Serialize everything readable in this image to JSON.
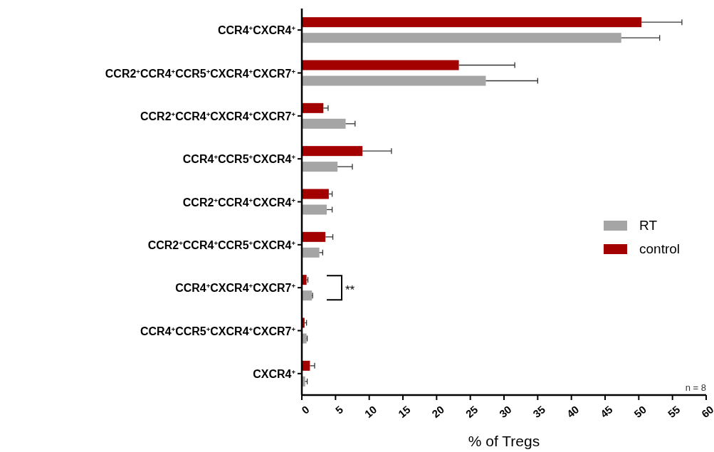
{
  "chart_data": {
    "type": "bar",
    "orientation": "horizontal",
    "xlabel": "% of Tregs",
    "categories": [
      "CCR4$^{+}$CXCR4$^{+}$",
      "CCR2$^{+}$CCR4$^{+}$CCR5$^{+}$CXCR4$^{+}$CXCR7$^{+}$",
      "CCR2$^{+}$CCR4$^{+}$CXCR4$^{+}$CXCR7$^{+}$",
      "CCR4$^{+}$CCR5$^{+}$CXCR4$^{+}$",
      "CCR2$^{+}$CCR4$^{+}$CXCR4$^{+}$",
      "CCR2$^{+}$CCR4$^{+}$CCR5$^{+}$CXCR4$^{+}$",
      "CCR4$^{+}$CXCR4$^{+}$CXCR7$^{+}$",
      "CCR4$^{+}$CCR5$^{+}$CXCR4$^{+}$CXCR7$^{+}$",
      "CXCR4$^{+}$"
    ],
    "series": [
      {
        "name": "control",
        "color": "#a30000",
        "values": [
          50.4,
          23.3,
          3.2,
          9.0,
          4.0,
          3.5,
          0.7,
          0.4,
          1.2
        ],
        "errors": [
          6.0,
          8.3,
          0.7,
          4.3,
          0.5,
          1.1,
          0.2,
          0.3,
          0.7
        ]
      },
      {
        "name": "RT",
        "color": "#a5a5a5",
        "values": [
          47.4,
          27.3,
          6.5,
          5.3,
          3.7,
          2.6,
          1.5,
          0.7,
          0.5
        ],
        "errors": [
          5.7,
          7.7,
          1.4,
          2.2,
          0.8,
          0.5,
          0.1,
          0.1,
          0.3
        ]
      }
    ],
    "xlim": [
      0,
      60
    ],
    "xticks": [
      0,
      5,
      10,
      15,
      20,
      25,
      30,
      35,
      40,
      45,
      50,
      55,
      60
    ],
    "legend": "right",
    "grid": false,
    "annotations": [
      "**",
      "n = 8"
    ]
  }
}
